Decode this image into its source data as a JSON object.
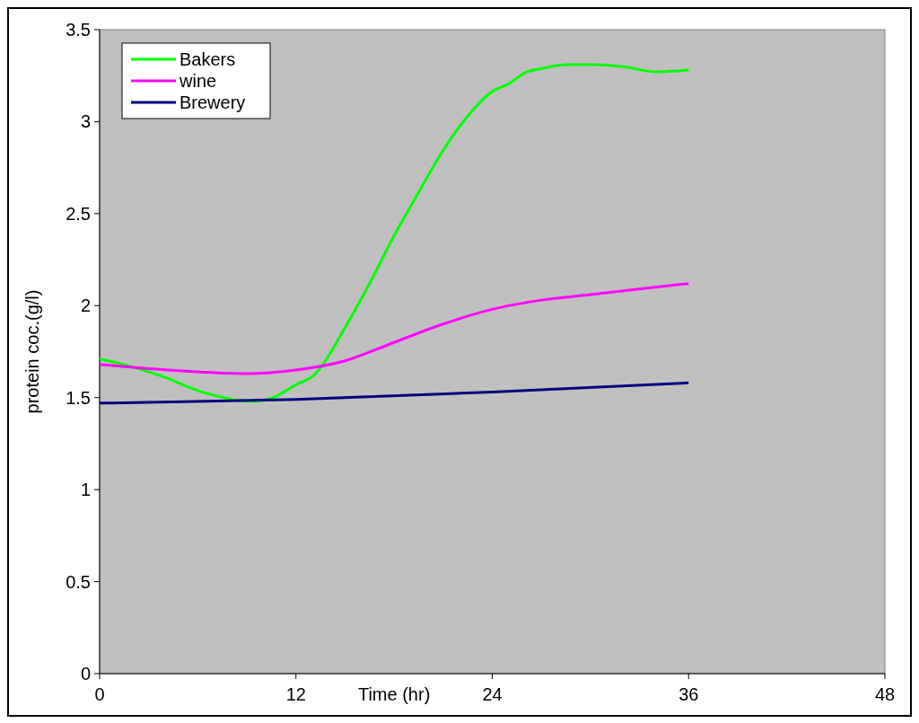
{
  "chart_data": {
    "type": "line",
    "xlabel": "Time (hr)",
    "ylabel": "protein coc.(g/l)",
    "xlim": [
      0,
      48
    ],
    "xticks": [
      0,
      12,
      24,
      36,
      48
    ],
    "ylim": [
      0,
      3.5
    ],
    "yticks": [
      0,
      0.5,
      1,
      1.5,
      2,
      2.5,
      3,
      3.5
    ],
    "grid": false,
    "legend": "top left",
    "marker": "none",
    "line_style": "solid",
    "series": [
      {
        "name": "Bakers",
        "color": "#00ff00",
        "x": [
          0,
          1,
          3.7,
          6.3,
          9.3,
          10.6,
          12,
          13.2,
          13.8,
          15,
          16.5,
          18,
          19.4,
          20.9,
          22.5,
          24.1,
          24.9,
          26.1,
          27.1,
          28.5,
          30.3,
          31.9,
          34.1,
          36
        ],
        "values": [
          1.71,
          1.69,
          1.62,
          1.53,
          1.48,
          1.5,
          1.57,
          1.63,
          1.7,
          1.88,
          2.12,
          2.38,
          2.6,
          2.83,
          3.03,
          3.17,
          3.2,
          3.27,
          3.29,
          3.31,
          3.31,
          3.3,
          3.27,
          3.28
        ]
      },
      {
        "name": "wine",
        "color": "#ff00ff",
        "x": [
          0,
          6,
          9,
          12,
          15,
          18,
          21,
          24,
          27,
          30,
          33,
          36
        ],
        "values": [
          1.68,
          1.64,
          1.63,
          1.65,
          1.7,
          1.8,
          1.9,
          1.98,
          2.03,
          2.06,
          2.09,
          2.12
        ]
      },
      {
        "name": "Brewery",
        "color": "#000080",
        "x": [
          0,
          12,
          24,
          36
        ],
        "values": [
          1.47,
          1.49,
          1.53,
          1.58
        ]
      }
    ]
  }
}
